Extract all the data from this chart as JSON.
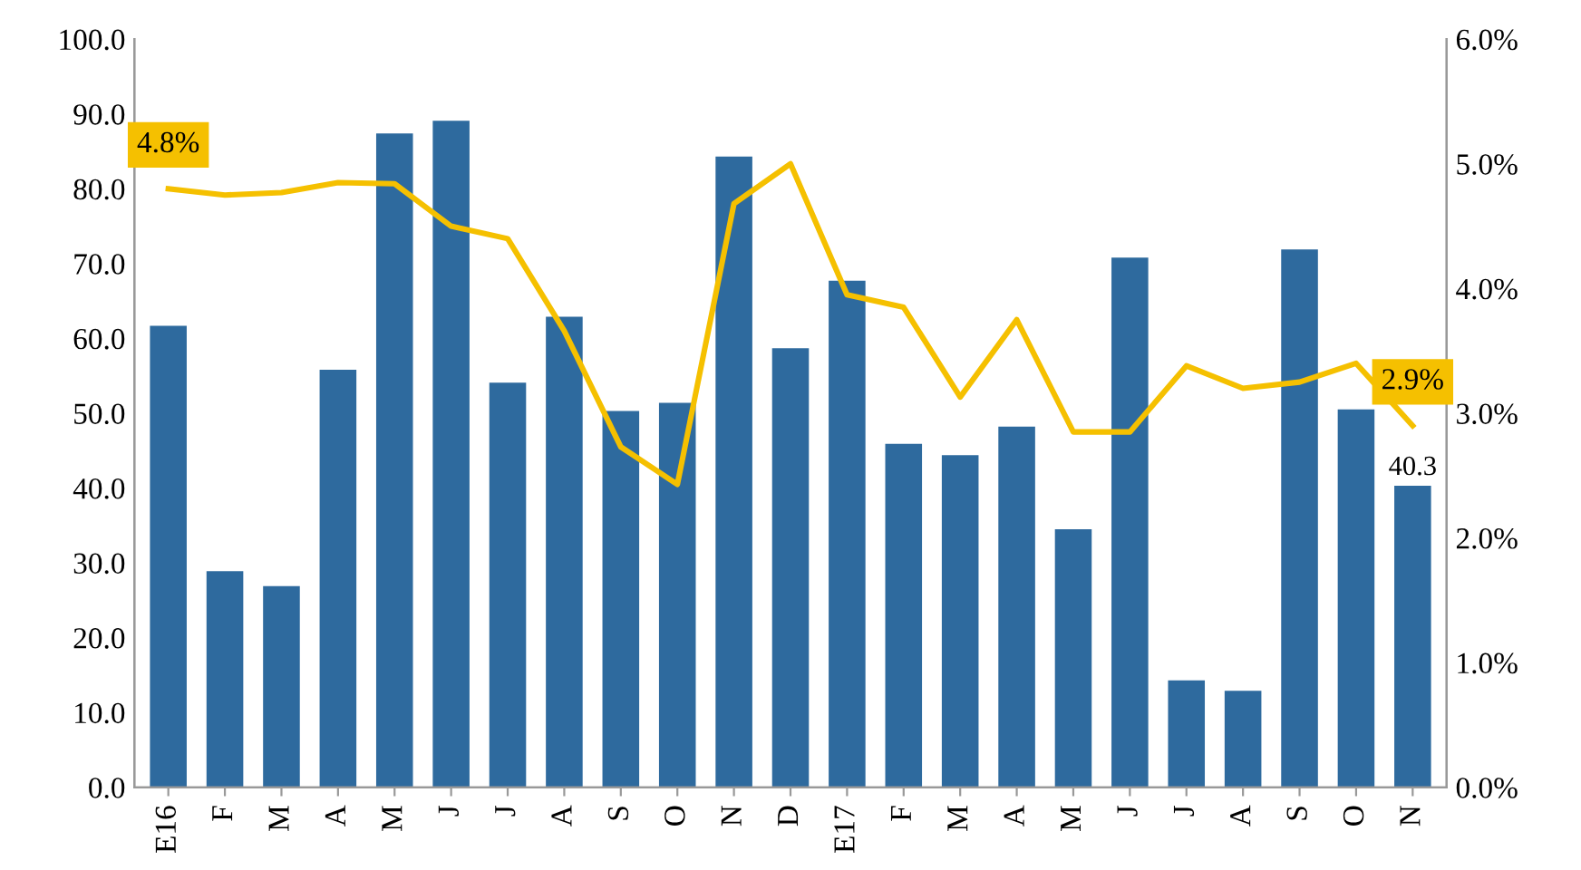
{
  "chart_data": {
    "type": "bar",
    "categories": [
      "E16",
      "F",
      "M",
      "A",
      "M",
      "J",
      "J",
      "A",
      "S",
      "O",
      "N",
      "D",
      "E17",
      "F",
      "M",
      "A",
      "M",
      "J",
      "J",
      "A",
      "S",
      "O",
      "N"
    ],
    "series": [
      {
        "color": "#2e6a9e",
        "values": [
          61.7,
          28.9,
          26.9,
          55.8,
          87.4,
          89.1,
          54.1,
          62.9,
          50.3,
          51.4,
          84.3,
          58.7,
          67.7,
          45.9,
          44.4,
          48.2,
          34.5,
          70.8,
          14.3,
          12.9,
          71.9,
          50.5,
          40.3
        ],
        "value_labels": [
          null,
          null,
          null,
          null,
          null,
          null,
          null,
          null,
          null,
          null,
          null,
          null,
          null,
          null,
          null,
          null,
          null,
          null,
          null,
          null,
          null,
          null,
          "40.3"
        ]
      },
      {
        "type": "line",
        "axis": "y2",
        "color": "#f5c000",
        "values": [
          4.8,
          4.75,
          4.77,
          4.85,
          4.84,
          4.5,
          4.4,
          3.66,
          2.73,
          2.43,
          4.68,
          5.0,
          3.95,
          3.85,
          3.13,
          3.75,
          2.85,
          2.85,
          3.38,
          3.2,
          3.25,
          3.4,
          2.9
        ],
        "value_labels": [
          "4.8%",
          null,
          null,
          null,
          null,
          null,
          null,
          null,
          null,
          null,
          null,
          null,
          null,
          null,
          null,
          null,
          null,
          null,
          null,
          null,
          null,
          null,
          "2.9%"
        ]
      }
    ],
    "ylim": [
      0,
      100
    ],
    "yticks": [
      {
        "value": 0,
        "label": "0.0"
      },
      {
        "value": 10,
        "label": "10.0"
      },
      {
        "value": 20,
        "label": "20.0"
      },
      {
        "value": 30,
        "label": "30.0"
      },
      {
        "value": 40,
        "label": "40.0"
      },
      {
        "value": 50,
        "label": "50.0"
      },
      {
        "value": 60,
        "label": "60.0"
      },
      {
        "value": 70,
        "label": "70.0"
      },
      {
        "value": 80,
        "label": "80.0"
      },
      {
        "value": 90,
        "label": "90.0"
      },
      {
        "value": 100,
        "label": "100.0"
      }
    ],
    "y2lim": [
      0,
      6
    ],
    "y2ticks": [
      {
        "value": 0,
        "label": "0.0%"
      },
      {
        "value": 1,
        "label": "1.0%"
      },
      {
        "value": 2,
        "label": "2.0%"
      },
      {
        "value": 3,
        "label": "3.0%"
      },
      {
        "value": 4,
        "label": "4.0%"
      },
      {
        "value": 5,
        "label": "5.0%"
      },
      {
        "value": 6,
        "label": "6.0%"
      }
    ],
    "grid": false,
    "legend": false,
    "marker": "none",
    "line_style": "solid"
  }
}
